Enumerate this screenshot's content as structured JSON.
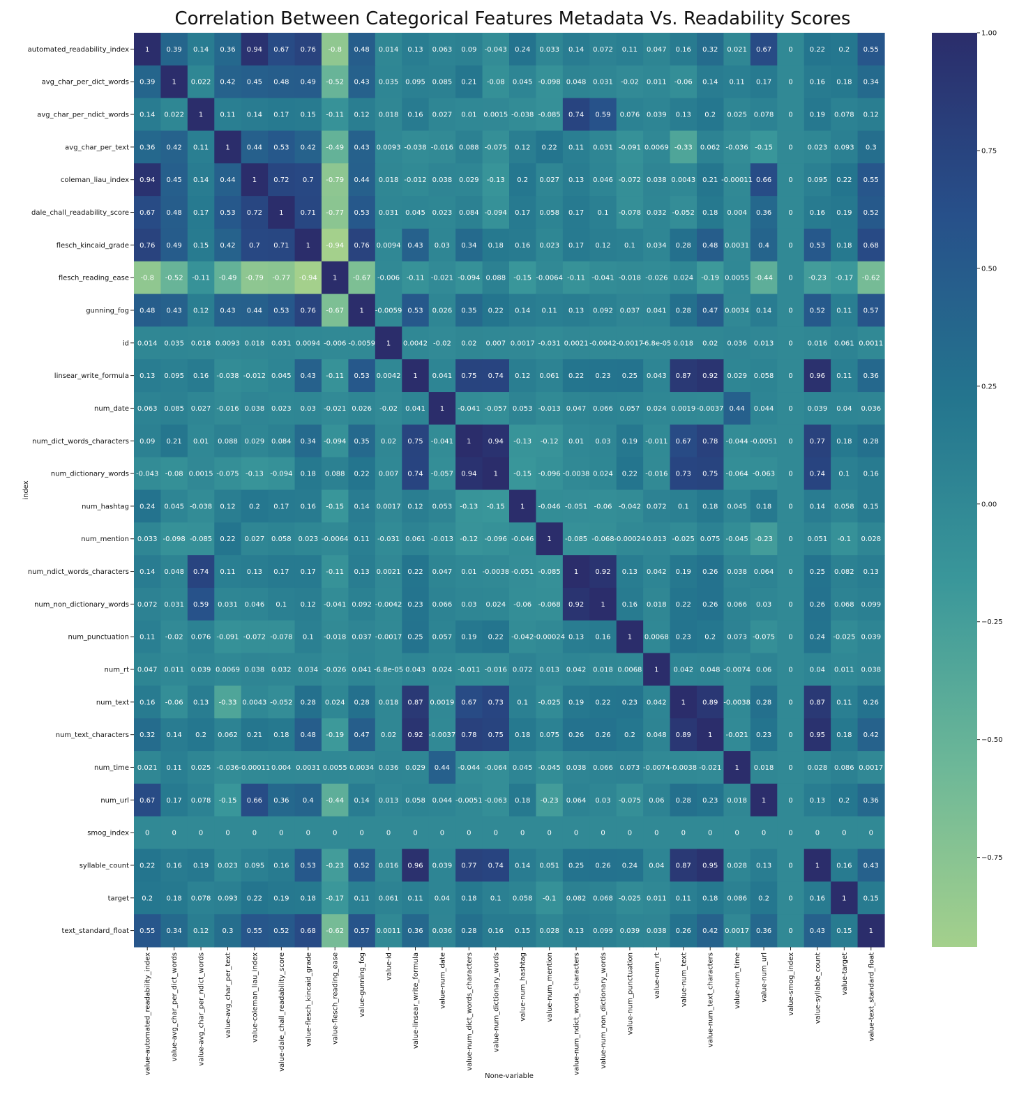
{
  "chart_data": {
    "type": "heatmap",
    "title": "Correlation Between Categorical Features Metadata Vs. Readability Scores",
    "xlabel": "None-variable",
    "ylabel": "index",
    "rows": [
      "automated_readability_index",
      "avg_char_per_dict_words",
      "avg_char_per_ndict_words",
      "avg_char_per_text",
      "coleman_liau_index",
      "dale_chall_readability_score",
      "flesch_kincaid_grade",
      "flesch_reading_ease",
      "gunning_fog",
      "id",
      "linsear_write_formula",
      "num_date",
      "num_dict_words_characters",
      "num_dictionary_words",
      "num_hashtag",
      "num_mention",
      "num_ndict_words_characters",
      "num_non_dictionary_words",
      "num_punctuation",
      "num_rt",
      "num_text",
      "num_text_characters",
      "num_time",
      "num_url",
      "smog_index",
      "syllable_count",
      "target",
      "text_standard_float"
    ],
    "columns": [
      "value-automated_readability_index",
      "value-avg_char_per_dict_words",
      "value-avg_char_per_ndict_words",
      "value-avg_char_per_text",
      "value-coleman_liau_index",
      "value-dale_chall_readability_score",
      "value-flesch_kincaid_grade",
      "value-flesch_reading_ease",
      "value-gunning_fog",
      "value-id",
      "value-linsear_write_formula",
      "value-num_date",
      "value-num_dict_words_characters",
      "value-num_dictionary_words",
      "value-num_hashtag",
      "value-num_mention",
      "value-num_ndict_words_characters",
      "value-num_non_dictionary_words",
      "value-num_punctuation",
      "value-num_rt",
      "value-num_text",
      "value-num_text_characters",
      "value-num_time",
      "value-num_url",
      "value-smog_index",
      "value-syllable_count",
      "value-target",
      "value-text_standard_float"
    ],
    "cells": [
      [
        "1",
        "0.39",
        "0.14",
        "0.36",
        "0.94",
        "0.67",
        "0.76",
        "-0.8",
        "0.48",
        "0.014",
        "0.13",
        "0.063",
        "0.09",
        "-0.043",
        "0.24",
        "0.033",
        "0.14",
        "0.072",
        "0.11",
        "0.047",
        "0.16",
        "0.32",
        "0.021",
        "0.67",
        "0",
        "0.22",
        "0.2",
        "0.55"
      ],
      [
        "0.39",
        "1",
        "0.022",
        "0.42",
        "0.45",
        "0.48",
        "0.49",
        "-0.52",
        "0.43",
        "0.035",
        "0.095",
        "0.085",
        "0.21",
        "-0.08",
        "0.045",
        "-0.098",
        "0.048",
        "0.031",
        "-0.02",
        "0.011",
        "-0.06",
        "0.14",
        "0.11",
        "0.17",
        "0",
        "0.16",
        "0.18",
        "0.34"
      ],
      [
        "0.14",
        "0.022",
        "1",
        "0.11",
        "0.14",
        "0.17",
        "0.15",
        "-0.11",
        "0.12",
        "0.018",
        "0.16",
        "0.027",
        "0.01",
        "0.0015",
        "-0.038",
        "-0.085",
        "0.74",
        "0.59",
        "0.076",
        "0.039",
        "0.13",
        "0.2",
        "0.025",
        "0.078",
        "0",
        "0.19",
        "0.078",
        "0.12"
      ],
      [
        "0.36",
        "0.42",
        "0.11",
        "1",
        "0.44",
        "0.53",
        "0.42",
        "-0.49",
        "0.43",
        "0.0093",
        "-0.038",
        "-0.016",
        "0.088",
        "-0.075",
        "0.12",
        "0.22",
        "0.11",
        "0.031",
        "-0.091",
        "0.0069",
        "-0.33",
        "0.062",
        "-0.036",
        "-0.15",
        "0",
        "0.023",
        "0.093",
        "0.3"
      ],
      [
        "0.94",
        "0.45",
        "0.14",
        "0.44",
        "1",
        "0.72",
        "0.7",
        "-0.79",
        "0.44",
        "0.018",
        "-0.012",
        "0.038",
        "0.029",
        "-0.13",
        "0.2",
        "0.027",
        "0.13",
        "0.046",
        "-0.072",
        "0.038",
        "0.0043",
        "0.21",
        "-0.00011",
        "0.66",
        "0",
        "0.095",
        "0.22",
        "0.55"
      ],
      [
        "0.67",
        "0.48",
        "0.17",
        "0.53",
        "0.72",
        "1",
        "0.71",
        "-0.77",
        "0.53",
        "0.031",
        "0.045",
        "0.023",
        "0.084",
        "-0.094",
        "0.17",
        "0.058",
        "0.17",
        "0.1",
        "-0.078",
        "0.032",
        "-0.052",
        "0.18",
        "0.004",
        "0.36",
        "0",
        "0.16",
        "0.19",
        "0.52"
      ],
      [
        "0.76",
        "0.49",
        "0.15",
        "0.42",
        "0.7",
        "0.71",
        "1",
        "-0.94",
        "0.76",
        "0.0094",
        "0.43",
        "0.03",
        "0.34",
        "0.18",
        "0.16",
        "0.023",
        "0.17",
        "0.12",
        "0.1",
        "0.034",
        "0.28",
        "0.48",
        "0.0031",
        "0.4",
        "0",
        "0.53",
        "0.18",
        "0.68"
      ],
      [
        "-0.8",
        "-0.52",
        "-0.11",
        "-0.49",
        "-0.79",
        "-0.77",
        "-0.94",
        "1",
        "-0.67",
        "-0.006",
        "-0.11",
        "-0.021",
        "-0.094",
        "0.088",
        "-0.15",
        "-0.0064",
        "-0.11",
        "-0.041",
        "-0.018",
        "-0.026",
        "0.024",
        "-0.19",
        "0.0055",
        "-0.44",
        "0",
        "-0.23",
        "-0.17",
        "-0.62"
      ],
      [
        "0.48",
        "0.43",
        "0.12",
        "0.43",
        "0.44",
        "0.53",
        "0.76",
        "-0.67",
        "1",
        "-0.0059",
        "0.53",
        "0.026",
        "0.35",
        "0.22",
        "0.14",
        "0.11",
        "0.13",
        "0.092",
        "0.037",
        "0.041",
        "0.28",
        "0.47",
        "0.0034",
        "0.14",
        "0",
        "0.52",
        "0.11",
        "0.57"
      ],
      [
        "0.014",
        "0.035",
        "0.018",
        "0.0093",
        "0.018",
        "0.031",
        "0.0094",
        "-0.006",
        "-0.0059",
        "1",
        "0.0042",
        "-0.02",
        "0.02",
        "0.007",
        "0.0017",
        "-0.031",
        "0.0021",
        "-0.0042",
        "-0.0017",
        "-6.8e-05",
        "0.018",
        "0.02",
        "0.036",
        "0.013",
        "0",
        "0.016",
        "0.061",
        "0.0011"
      ],
      [
        "0.13",
        "0.095",
        "0.16",
        "-0.038",
        "-0.012",
        "0.045",
        "0.43",
        "-0.11",
        "0.53",
        "0.0042",
        "1",
        "0.041",
        "0.75",
        "0.74",
        "0.12",
        "0.061",
        "0.22",
        "0.23",
        "0.25",
        "0.043",
        "0.87",
        "0.92",
        "0.029",
        "0.058",
        "0",
        "0.96",
        "0.11",
        "0.36"
      ],
      [
        "0.063",
        "0.085",
        "0.027",
        "-0.016",
        "0.038",
        "0.023",
        "0.03",
        "-0.021",
        "0.026",
        "-0.02",
        "0.041",
        "1",
        "-0.041",
        "-0.057",
        "0.053",
        "-0.013",
        "0.047",
        "0.066",
        "0.057",
        "0.024",
        "0.0019",
        "-0.0037",
        "0.44",
        "0.044",
        "0",
        "0.039",
        "0.04",
        "0.036"
      ],
      [
        "0.09",
        "0.21",
        "0.01",
        "0.088",
        "0.029",
        "0.084",
        "0.34",
        "-0.094",
        "0.35",
        "0.02",
        "0.75",
        "-0.041",
        "1",
        "0.94",
        "-0.13",
        "-0.12",
        "0.01",
        "0.03",
        "0.19",
        "-0.011",
        "0.67",
        "0.78",
        "-0.044",
        "-0.0051",
        "0",
        "0.77",
        "0.18",
        "0.28"
      ],
      [
        "-0.043",
        "-0.08",
        "0.0015",
        "-0.075",
        "-0.13",
        "-0.094",
        "0.18",
        "0.088",
        "0.22",
        "0.007",
        "0.74",
        "-0.057",
        "0.94",
        "1",
        "-0.15",
        "-0.096",
        "-0.0038",
        "0.024",
        "0.22",
        "-0.016",
        "0.73",
        "0.75",
        "-0.064",
        "-0.063",
        "0",
        "0.74",
        "0.1",
        "0.16"
      ],
      [
        "0.24",
        "0.045",
        "-0.038",
        "0.12",
        "0.2",
        "0.17",
        "0.16",
        "-0.15",
        "0.14",
        "0.0017",
        "0.12",
        "0.053",
        "-0.13",
        "-0.15",
        "1",
        "-0.046",
        "-0.051",
        "-0.06",
        "-0.042",
        "0.072",
        "0.1",
        "0.18",
        "0.045",
        "0.18",
        "0",
        "0.14",
        "0.058",
        "0.15"
      ],
      [
        "0.033",
        "-0.098",
        "-0.085",
        "0.22",
        "0.027",
        "0.058",
        "0.023",
        "-0.0064",
        "0.11",
        "-0.031",
        "0.061",
        "-0.013",
        "-0.12",
        "-0.096",
        "-0.046",
        "1",
        "-0.085",
        "-0.068",
        "-0.00024",
        "0.013",
        "-0.025",
        "0.075",
        "-0.045",
        "-0.23",
        "0",
        "0.051",
        "-0.1",
        "0.028"
      ],
      [
        "0.14",
        "0.048",
        "0.74",
        "0.11",
        "0.13",
        "0.17",
        "0.17",
        "-0.11",
        "0.13",
        "0.0021",
        "0.22",
        "0.047",
        "0.01",
        "-0.0038",
        "-0.051",
        "-0.085",
        "1",
        "0.92",
        "0.13",
        "0.042",
        "0.19",
        "0.26",
        "0.038",
        "0.064",
        "0",
        "0.25",
        "0.082",
        "0.13"
      ],
      [
        "0.072",
        "0.031",
        "0.59",
        "0.031",
        "0.046",
        "0.1",
        "0.12",
        "-0.041",
        "0.092",
        "-0.0042",
        "0.23",
        "0.066",
        "0.03",
        "0.024",
        "-0.06",
        "-0.068",
        "0.92",
        "1",
        "0.16",
        "0.018",
        "0.22",
        "0.26",
        "0.066",
        "0.03",
        "0",
        "0.26",
        "0.068",
        "0.099"
      ],
      [
        "0.11",
        "-0.02",
        "0.076",
        "-0.091",
        "-0.072",
        "-0.078",
        "0.1",
        "-0.018",
        "0.037",
        "-0.0017",
        "0.25",
        "0.057",
        "0.19",
        "0.22",
        "-0.042",
        "-0.00024",
        "0.13",
        "0.16",
        "1",
        "0.0068",
        "0.23",
        "0.2",
        "0.073",
        "-0.075",
        "0",
        "0.24",
        "-0.025",
        "0.039"
      ],
      [
        "0.047",
        "0.011",
        "0.039",
        "0.0069",
        "0.038",
        "0.032",
        "0.034",
        "-0.026",
        "0.041",
        "-6.8e-05",
        "0.043",
        "0.024",
        "-0.011",
        "-0.016",
        "0.072",
        "0.013",
        "0.042",
        "0.018",
        "0.0068",
        "1",
        "0.042",
        "0.048",
        "-0.0074",
        "0.06",
        "0",
        "0.04",
        "0.011",
        "0.038"
      ],
      [
        "0.16",
        "-0.06",
        "0.13",
        "-0.33",
        "0.0043",
        "-0.052",
        "0.28",
        "0.024",
        "0.28",
        "0.018",
        "0.87",
        "0.0019",
        "0.67",
        "0.73",
        "0.1",
        "-0.025",
        "0.19",
        "0.22",
        "0.23",
        "0.042",
        "1",
        "0.89",
        "-0.0038",
        "0.28",
        "0",
        "0.87",
        "0.11",
        "0.26"
      ],
      [
        "0.32",
        "0.14",
        "0.2",
        "0.062",
        "0.21",
        "0.18",
        "0.48",
        "-0.19",
        "0.47",
        "0.02",
        "0.92",
        "-0.0037",
        "0.78",
        "0.75",
        "0.18",
        "0.075",
        "0.26",
        "0.26",
        "0.2",
        "0.048",
        "0.89",
        "1",
        "-0.021",
        "0.23",
        "0",
        "0.95",
        "0.18",
        "0.42"
      ],
      [
        "0.021",
        "0.11",
        "0.025",
        "-0.036",
        "-0.00011",
        "0.004",
        "0.0031",
        "0.0055",
        "0.0034",
        "0.036",
        "0.029",
        "0.44",
        "-0.044",
        "-0.064",
        "0.045",
        "-0.045",
        "0.038",
        "0.066",
        "0.073",
        "-0.0074",
        "-0.0038",
        "-0.021",
        "1",
        "0.018",
        "0",
        "0.028",
        "0.086",
        "0.0017"
      ],
      [
        "0.67",
        "0.17",
        "0.078",
        "-0.15",
        "0.66",
        "0.36",
        "0.4",
        "-0.44",
        "0.14",
        "0.013",
        "0.058",
        "0.044",
        "-0.0051",
        "-0.063",
        "0.18",
        "-0.23",
        "0.064",
        "0.03",
        "-0.075",
        "0.06",
        "0.28",
        "0.23",
        "0.018",
        "1",
        "0",
        "0.13",
        "0.2",
        "0.36"
      ],
      [
        "0",
        "0",
        "0",
        "0",
        "0",
        "0",
        "0",
        "0",
        "0",
        "0",
        "0",
        "0",
        "0",
        "0",
        "0",
        "0",
        "0",
        "0",
        "0",
        "0",
        "0",
        "0",
        "0",
        "0",
        "0",
        "0",
        "0",
        "0"
      ],
      [
        "0.22",
        "0.16",
        "0.19",
        "0.023",
        "0.095",
        "0.16",
        "0.53",
        "-0.23",
        "0.52",
        "0.016",
        "0.96",
        "0.039",
        "0.77",
        "0.74",
        "0.14",
        "0.051",
        "0.25",
        "0.26",
        "0.24",
        "0.04",
        "0.87",
        "0.95",
        "0.028",
        "0.13",
        "0",
        "1",
        "0.16",
        "0.43"
      ],
      [
        "0.2",
        "0.18",
        "0.078",
        "0.093",
        "0.22",
        "0.19",
        "0.18",
        "-0.17",
        "0.11",
        "0.061",
        "0.11",
        "0.04",
        "0.18",
        "0.1",
        "0.058",
        "-0.1",
        "0.082",
        "0.068",
        "-0.025",
        "0.011",
        "0.11",
        "0.18",
        "0.086",
        "0.2",
        "0",
        "0.16",
        "1",
        "0.15"
      ],
      [
        "0.55",
        "0.34",
        "0.12",
        "0.3",
        "0.55",
        "0.52",
        "0.68",
        "-0.62",
        "0.57",
        "0.0011",
        "0.36",
        "0.036",
        "0.28",
        "0.16",
        "0.15",
        "0.028",
        "0.13",
        "0.099",
        "0.039",
        "0.038",
        "0.26",
        "0.42",
        "0.0017",
        "0.36",
        "0",
        "0.43",
        "0.15",
        "1"
      ]
    ],
    "color_scale": {
      "min": -0.94,
      "max": 1.0,
      "stops": [
        "#a4d08c",
        "#6cb798",
        "#3a979a",
        "#24758e",
        "#27508a",
        "#2b2d6b"
      ],
      "ticks": [
        "1.00",
        "0.75",
        "0.50",
        "0.25",
        "0.00",
        "−0.25",
        "−0.50",
        "−0.75"
      ],
      "tick_values": [
        1.0,
        0.75,
        0.5,
        0.25,
        0.0,
        -0.25,
        -0.5,
        -0.75
      ]
    },
    "annotated": true,
    "legend": "colorbar-right"
  }
}
